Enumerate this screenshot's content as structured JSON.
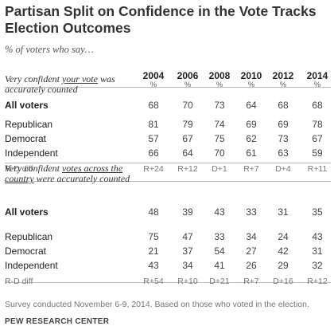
{
  "title": "Partisan Split on Confidence  in the Vote Tracks Election Outcomes",
  "subtitle": "% of voters who say…",
  "chart_data": {
    "type": "table",
    "years": [
      "2004",
      "2006",
      "2008",
      "2010",
      "2012",
      "2014"
    ],
    "unit_row": [
      "%",
      "%",
      "%",
      "%",
      "%",
      "%"
    ],
    "sections": [
      {
        "question_parts": [
          "Very confident ",
          "your vote",
          " was accurately counted"
        ],
        "rows": [
          {
            "label": "All voters",
            "values": [
              68,
              70,
              73,
              64,
              68,
              68
            ]
          },
          {
            "label": "Republican",
            "values": [
              81,
              79,
              74,
              69,
              69,
              78
            ]
          },
          {
            "label": "Democrat",
            "values": [
              57,
              67,
              75,
              62,
              73,
              67
            ]
          },
          {
            "label": "Independent",
            "values": [
              66,
              64,
              70,
              61,
              63,
              59
            ]
          },
          {
            "label": "R-D diff",
            "values": [
              "R+24",
              "R+12",
              "D+1",
              "R+7",
              "D+4",
              "R+11"
            ]
          }
        ]
      },
      {
        "question_parts": [
          "Very confident ",
          "votes across the country",
          " were accurately counted"
        ],
        "rows": [
          {
            "label": "All voters",
            "values": [
              48,
              39,
              43,
              33,
              31,
              35
            ]
          },
          {
            "label": "Republican",
            "values": [
              75,
              47,
              33,
              34,
              24,
              43
            ]
          },
          {
            "label": "Democrat",
            "values": [
              21,
              37,
              54,
              27,
              42,
              31
            ]
          },
          {
            "label": "Independent",
            "values": [
              43,
              34,
              41,
              26,
              29,
              32
            ]
          },
          {
            "label": "R-D diff",
            "values": [
              "R+54",
              "R+10",
              "D+21",
              "R+7",
              "D+16",
              "R+12"
            ]
          }
        ]
      }
    ]
  },
  "note": "Survey conducted November 6-9, 2014.  Based on those who voted in the election.",
  "source": "PEW RESEARCH CENTER"
}
